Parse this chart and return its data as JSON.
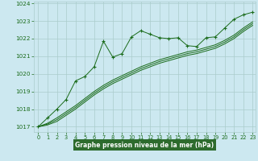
{
  "title": "Graphe pression niveau de la mer (hPa)",
  "bg_color": "#cce8f0",
  "grid_color": "#aacccc",
  "line_color": "#1a6b1a",
  "xlabel_bg": "#2d6b2d",
  "xlabel_fg": "#ffffff",
  "x_min": 0,
  "x_max": 23,
  "y_min": 1016.7,
  "y_max": 1024.1,
  "y_ticks": [
    1017,
    1018,
    1019,
    1020,
    1021,
    1022,
    1023,
    1024
  ],
  "main_line": [
    1017.0,
    1017.5,
    1018.0,
    1018.55,
    1019.6,
    1019.85,
    1020.4,
    1021.85,
    1020.95,
    1021.15,
    1022.1,
    1022.45,
    1022.25,
    1022.05,
    1022.0,
    1022.05,
    1021.6,
    1021.55,
    1022.05,
    1022.1,
    1022.6,
    1023.1,
    1023.35,
    1023.5
  ],
  "ref_line1": [
    1017.0,
    1017.2,
    1017.5,
    1017.85,
    1018.2,
    1018.6,
    1019.0,
    1019.35,
    1019.65,
    1019.9,
    1020.15,
    1020.4,
    1020.6,
    1020.8,
    1020.95,
    1021.1,
    1021.25,
    1021.35,
    1021.5,
    1021.65,
    1021.9,
    1022.2,
    1022.6,
    1022.95
  ],
  "ref_line2": [
    1017.0,
    1017.15,
    1017.4,
    1017.75,
    1018.1,
    1018.5,
    1018.9,
    1019.25,
    1019.55,
    1019.8,
    1020.05,
    1020.3,
    1020.5,
    1020.7,
    1020.85,
    1021.0,
    1021.15,
    1021.25,
    1021.4,
    1021.55,
    1021.8,
    1022.1,
    1022.5,
    1022.85
  ],
  "ref_line3": [
    1017.0,
    1017.1,
    1017.3,
    1017.65,
    1018.0,
    1018.4,
    1018.8,
    1019.15,
    1019.45,
    1019.7,
    1019.95,
    1020.2,
    1020.4,
    1020.6,
    1020.75,
    1020.9,
    1021.05,
    1021.15,
    1021.3,
    1021.45,
    1021.7,
    1022.0,
    1022.4,
    1022.75
  ]
}
